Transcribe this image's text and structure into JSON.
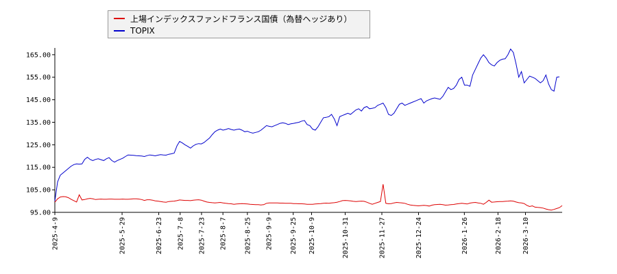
{
  "chart_data": {
    "type": "line",
    "title": "",
    "xlabel": "",
    "ylabel": "",
    "ylim": [
      95,
      168
    ],
    "yticks": [
      "95.00",
      "105.00",
      "115.00",
      "125.00",
      "135.00",
      "145.00",
      "155.00",
      "165.00"
    ],
    "xticks": [
      "2025-4-9",
      "2025-5-29",
      "2025-6-23",
      "2025-7-8",
      "2025-7-23",
      "2025-8-7",
      "2025-8-25",
      "2025-9-9",
      "2025-9-25",
      "2025-10-9",
      "2025-10-31",
      "2025-11-27",
      "2025-12-24",
      "2026-1-26",
      "2026-2-18",
      "2026-3-10"
    ],
    "grid": false,
    "legend_position": "top-left",
    "colors": {
      "series1": "#dd0000",
      "series2": "#0000cc"
    },
    "series": [
      {
        "name": "上場インデックスファンドフランス国債（為替ヘッジあり）",
        "values": [
          99.5,
          101.0,
          101.8,
          102.0,
          101.9,
          101.5,
          100.8,
          100.2,
          99.6,
          102.8,
          100.5,
          100.7,
          101.0,
          101.2,
          101.0,
          100.7,
          100.8,
          100.9,
          100.8,
          100.8,
          100.9,
          100.9,
          100.8,
          100.8,
          100.8,
          100.9,
          100.8,
          100.8,
          100.9,
          101.0,
          101.0,
          100.9,
          100.7,
          100.3,
          100.6,
          100.6,
          100.4,
          100.1,
          100.0,
          99.8,
          99.6,
          99.5,
          99.8,
          99.9,
          100.0,
          100.2,
          100.5,
          100.4,
          100.3,
          100.3,
          100.2,
          100.4,
          100.5,
          100.6,
          100.4,
          100.0,
          99.6,
          99.4,
          99.3,
          99.2,
          99.3,
          99.4,
          99.2,
          99.0,
          98.9,
          98.8,
          98.6,
          98.7,
          98.8,
          98.9,
          98.8,
          98.7,
          98.6,
          98.5,
          98.4,
          98.4,
          98.3,
          98.4,
          99.0,
          99.2,
          99.2,
          99.2,
          99.2,
          99.1,
          99.1,
          99.0,
          99.0,
          99.0,
          98.9,
          98.9,
          98.8,
          98.8,
          98.7,
          98.6,
          98.6,
          98.6,
          98.7,
          98.8,
          98.9,
          99.0,
          99.1,
          99.0,
          99.2,
          99.3,
          99.5,
          99.8,
          100.2,
          100.3,
          100.2,
          100.1,
          99.9,
          99.8,
          99.9,
          100.0,
          99.9,
          99.5,
          99.0,
          98.6,
          99.0,
          99.4,
          99.8,
          107.5,
          99.0,
          98.8,
          98.9,
          99.2,
          99.4,
          99.3,
          99.2,
          99.0,
          98.6,
          98.3,
          98.1,
          98.0,
          97.9,
          98.0,
          98.1,
          98.0,
          97.8,
          98.2,
          98.4,
          98.5,
          98.6,
          98.4,
          98.2,
          98.3,
          98.4,
          98.5,
          98.7,
          98.9,
          99.0,
          98.9,
          98.7,
          99.1,
          99.3,
          99.4,
          99.2,
          99.0,
          98.6,
          99.4,
          100.4,
          99.5,
          99.6,
          99.7,
          99.8,
          99.8,
          99.9,
          100.0,
          100.1,
          100.0,
          99.6,
          99.3,
          99.2,
          98.9,
          98.1,
          97.6,
          97.9,
          97.3,
          97.2,
          97.1,
          96.9,
          96.5,
          96.2,
          96.0,
          96.3,
          96.7,
          97.1,
          98.0
        ]
      },
      {
        "name": "TOPIX",
        "values": [
          100.0,
          108.5,
          111.5,
          112.5,
          113.5,
          114.5,
          115.5,
          116.2,
          116.5,
          116.4,
          116.5,
          118.5,
          119.5,
          118.5,
          118.0,
          118.5,
          118.8,
          118.4,
          118.0,
          118.8,
          119.3,
          118.0,
          117.3,
          118.0,
          118.5,
          119.0,
          119.8,
          120.5,
          120.4,
          120.3,
          120.2,
          120.1,
          120.0,
          119.8,
          120.2,
          120.5,
          120.3,
          120.1,
          120.4,
          120.6,
          120.5,
          120.4,
          120.8,
          121.0,
          121.3,
          124.5,
          126.5,
          125.8,
          125.0,
          124.3,
          123.5,
          124.5,
          125.2,
          125.5,
          125.4,
          126.0,
          127.0,
          128.0,
          129.5,
          130.8,
          131.5,
          132.0,
          131.5,
          131.8,
          132.2,
          131.8,
          131.5,
          131.8,
          132.0,
          131.5,
          130.8,
          131.0,
          130.5,
          130.2,
          130.5,
          130.8,
          131.5,
          132.5,
          133.5,
          133.2,
          133.0,
          133.5,
          134.0,
          134.5,
          134.8,
          134.5,
          134.0,
          134.3,
          134.5,
          134.8,
          135.0,
          135.5,
          135.8,
          134.0,
          133.5,
          132.0,
          131.5,
          133.0,
          135.0,
          137.0,
          137.2,
          137.5,
          138.5,
          136.5,
          133.5,
          137.5,
          138.0,
          138.5,
          139.0,
          138.5,
          139.5,
          140.5,
          141.0,
          140.0,
          141.5,
          142.0,
          141.0,
          141.2,
          141.5,
          142.5,
          143.0,
          143.5,
          141.5,
          138.5,
          138.0,
          139.0,
          141.0,
          143.0,
          143.5,
          142.5,
          143.0,
          143.5,
          144.0,
          144.5,
          145.0,
          145.5,
          143.5,
          144.5,
          145.0,
          145.5,
          145.8,
          145.5,
          145.2,
          146.5,
          148.5,
          150.5,
          149.5,
          150.0,
          151.5,
          154.0,
          155.0,
          151.5,
          151.5,
          151.0,
          156.0,
          158.5,
          161.0,
          163.5,
          165.0,
          163.5,
          161.5,
          160.5,
          160.0,
          161.5,
          162.5,
          163.0,
          163.2,
          165.0,
          167.5,
          166.0,
          161.0,
          155.0,
          157.5,
          152.5,
          154.0,
          155.5,
          155.0,
          154.5,
          153.5,
          152.5,
          153.5,
          156.0,
          152.0,
          149.5,
          148.8,
          155.0,
          155.2
        ]
      }
    ]
  }
}
